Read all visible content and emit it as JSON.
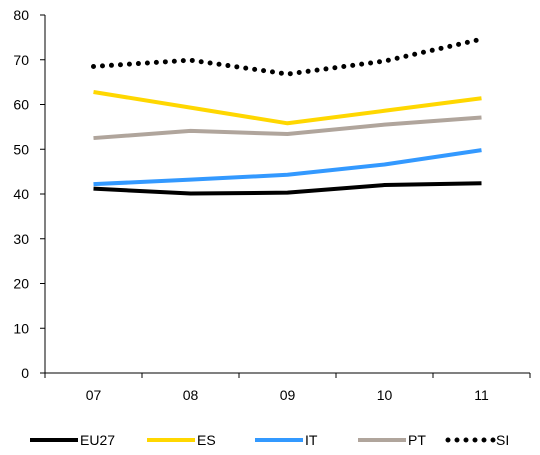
{
  "chart_data": {
    "type": "line",
    "title": "",
    "xlabel": "",
    "ylabel": "",
    "categories": [
      "07",
      "08",
      "09",
      "10",
      "11"
    ],
    "ylim": [
      0,
      80
    ],
    "yticks": [
      "0",
      "10",
      "20",
      "30",
      "40",
      "50",
      "60",
      "70",
      "80"
    ],
    "grid": false,
    "legend_position": "bottom",
    "series": [
      {
        "name": "EU27",
        "color": "#000000",
        "style": "solid",
        "values": [
          41.2,
          40.1,
          40.3,
          42.0,
          42.4
        ]
      },
      {
        "name": "ES",
        "color": "#FFD700",
        "style": "solid",
        "values": [
          62.8,
          59.3,
          55.8,
          58.6,
          61.4
        ]
      },
      {
        "name": "IT",
        "color": "#3399FF",
        "style": "solid",
        "values": [
          42.2,
          43.2,
          44.3,
          46.6,
          49.8
        ]
      },
      {
        "name": "PT",
        "color": "#B0A59C",
        "style": "solid",
        "values": [
          52.5,
          54.1,
          53.4,
          55.5,
          57.1
        ]
      },
      {
        "name": "SI",
        "color": "#000000",
        "style": "dotted",
        "values": [
          68.5,
          69.9,
          66.8,
          69.7,
          74.6
        ]
      }
    ]
  }
}
